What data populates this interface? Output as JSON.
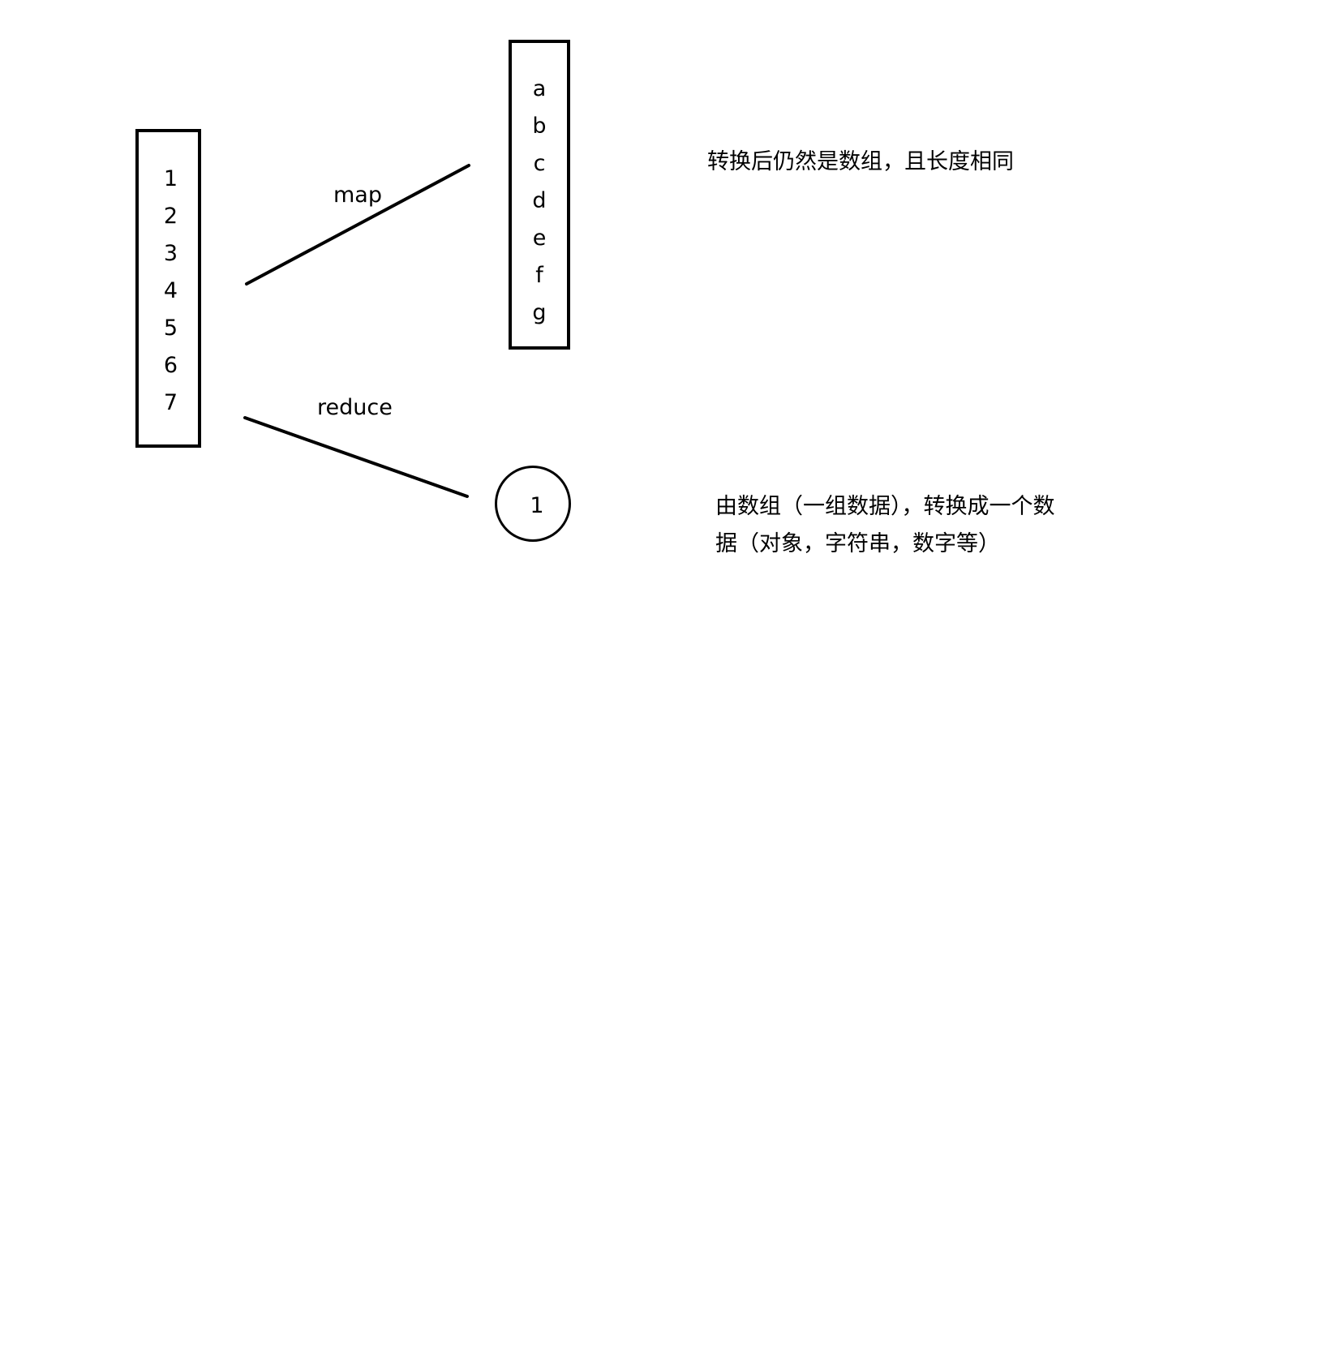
{
  "input_array": [
    "1",
    "2",
    "3",
    "4",
    "5",
    "6",
    "7"
  ],
  "mapped_array": [
    "a",
    "b",
    "c",
    "d",
    "e",
    "f",
    "g"
  ],
  "reduced_value": "1",
  "edges": {
    "map_label": "map",
    "reduce_label": "reduce"
  },
  "notes": {
    "map_note": "转换后仍然是数组，且长度相同",
    "reduce_note_line1": "由数组（一组数据），转换成一个数",
    "reduce_note_line2": "据（对象，字符串，数字等）"
  }
}
